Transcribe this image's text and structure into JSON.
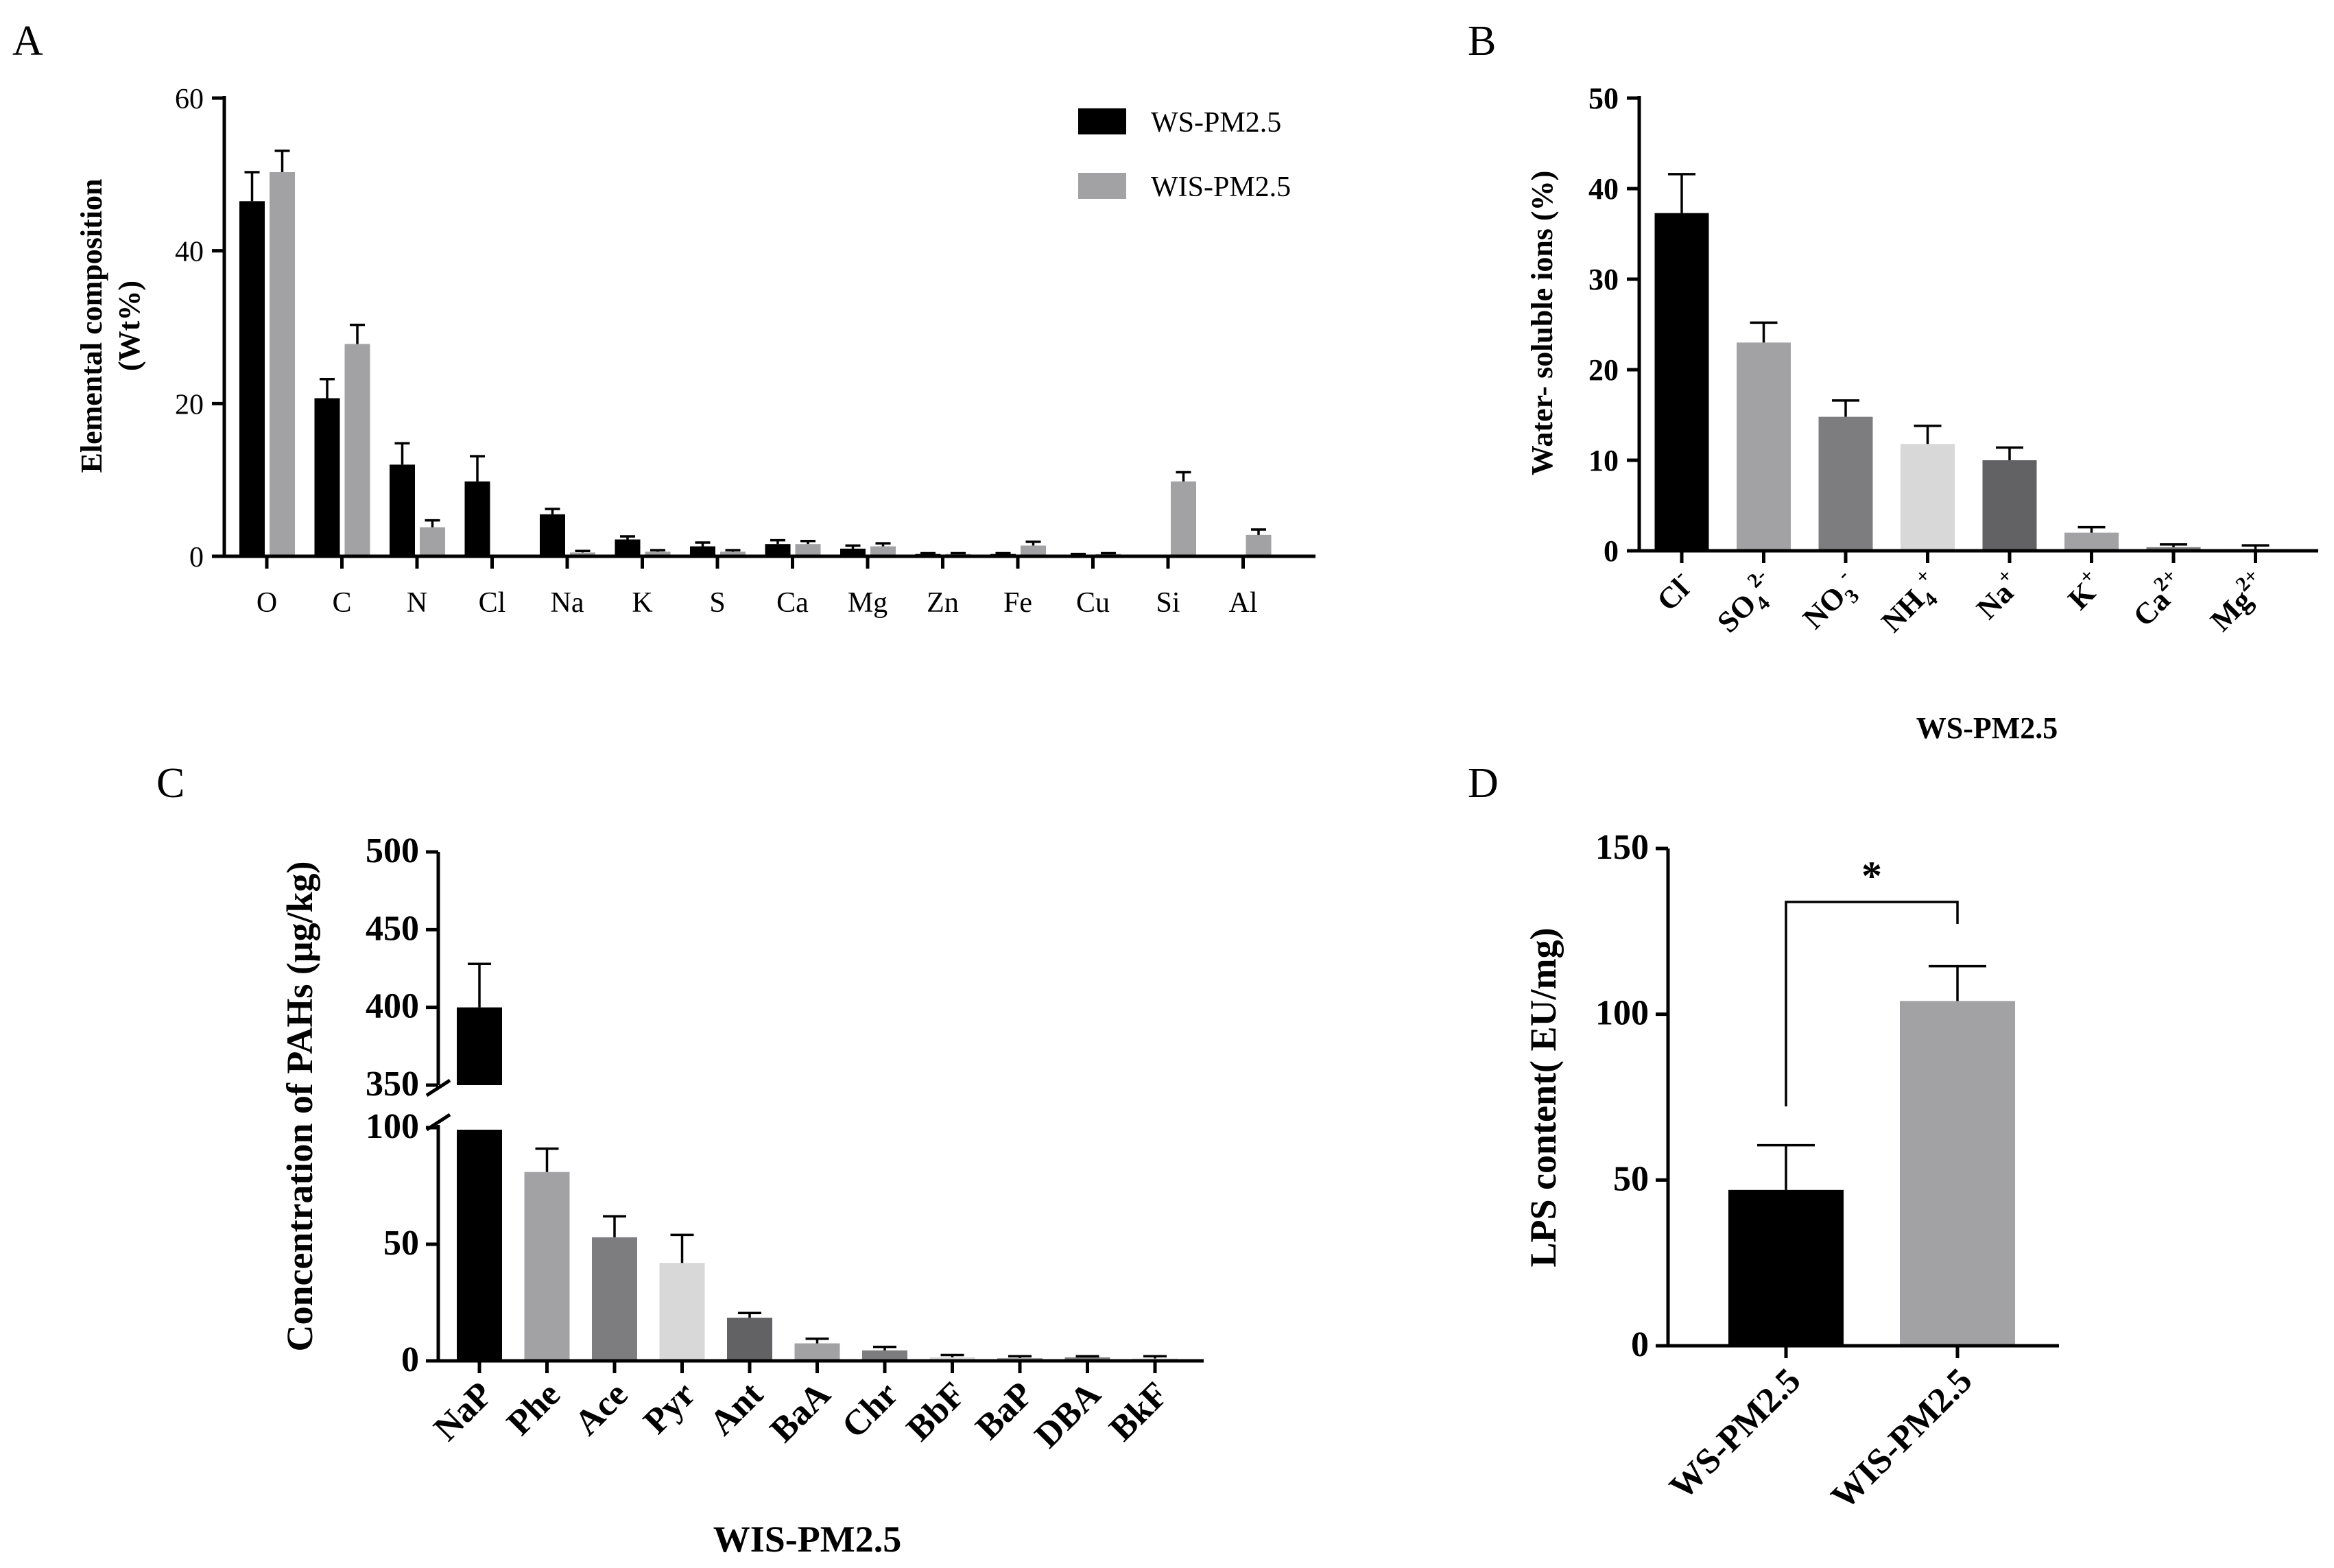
{
  "panels": {
    "a": {
      "letter": "A"
    },
    "b": {
      "letter": "B"
    },
    "c": {
      "letter": "C"
    },
    "d": {
      "letter": "D"
    }
  },
  "chart_data": [
    {
      "panel": "A",
      "type": "bar",
      "ylabel_line1": "Elemental composition",
      "ylabel_line2": "(Wt%)",
      "xlabel": "",
      "ylim": [
        0,
        60
      ],
      "yticks": [
        0,
        20,
        40,
        60
      ],
      "categories": [
        "O",
        "C",
        "N",
        "Cl",
        "Na",
        "K",
        "S",
        "Ca",
        "Mg",
        "Zn",
        "Fe",
        "Cu",
        "Si",
        "Al"
      ],
      "legend_position": "top-right",
      "series": [
        {
          "name": "WS-PM2.5",
          "color": "#000000",
          "values": [
            46.5,
            20.7,
            12.0,
            9.8,
            5.5,
            2.2,
            1.3,
            1.6,
            1.0,
            0.3,
            0.3,
            0.2,
            0,
            0
          ],
          "errors": [
            3.8,
            2.5,
            2.8,
            3.3,
            0.7,
            0.4,
            0.5,
            0.5,
            0.4,
            0.1,
            0.1,
            0.1,
            0,
            0
          ]
        },
        {
          "name": "WIS-PM2.5",
          "color": "#a2a2a5",
          "values": [
            50.3,
            27.8,
            3.8,
            0,
            0.5,
            0.6,
            0.6,
            1.6,
            1.3,
            0.3,
            1.4,
            0.3,
            9.8,
            2.8
          ],
          "errors": [
            2.8,
            2.5,
            0.9,
            0,
            0.2,
            0.2,
            0.2,
            0.4,
            0.4,
            0.1,
            0.5,
            0.1,
            1.2,
            0.7
          ]
        }
      ]
    },
    {
      "panel": "B",
      "type": "bar",
      "ylabel": "Water- soluble ions (%)",
      "xlabel": "WS-PM2.5",
      "ylim": [
        0,
        50
      ],
      "yticks": [
        0,
        10,
        20,
        30,
        40,
        50
      ],
      "categories": [
        {
          "base": "Cl",
          "sub": "",
          "sup": "-"
        },
        {
          "base": "SO",
          "sub": "4",
          "sup": "2-"
        },
        {
          "base": "NO",
          "sub": "3",
          "sup": "-"
        },
        {
          "base": "NH",
          "sub": "4",
          "sup": "+"
        },
        {
          "base": "Na",
          "sub": "",
          "sup": "+"
        },
        {
          "base": "K",
          "sub": "",
          "sup": "+"
        },
        {
          "base": "Ca",
          "sub": "",
          "sup": "2+"
        },
        {
          "base": "Mg",
          "sub": "",
          "sup": "2+"
        }
      ],
      "values": [
        37.3,
        23.0,
        14.8,
        11.8,
        10.0,
        2.0,
        0.4,
        0.2
      ],
      "errors": [
        4.3,
        2.2,
        1.8,
        2.0,
        1.4,
        0.6,
        0.3,
        0.4
      ],
      "colors": [
        "#000000",
        "#a2a2a5",
        "#7d7d80",
        "#d8d8d8",
        "#626265",
        "#a2a2a5",
        "#7d7d80",
        "#d8d8d8"
      ]
    },
    {
      "panel": "C",
      "type": "bar",
      "ylabel": "Concentration of PAHs (μg/kg)",
      "xlabel": "WIS-PM2.5",
      "broken_axis": {
        "lower": [
          0,
          100
        ],
        "upper": [
          350,
          500
        ]
      },
      "yticks_lower": [
        0,
        50,
        100
      ],
      "yticks_upper": [
        350,
        400,
        450,
        500
      ],
      "categories": [
        "NaP",
        "Phe",
        "Ace",
        "Pyr",
        "Ant",
        "BaA",
        "Chr",
        "BbF",
        "BaP",
        "DBA",
        "BkF"
      ],
      "values": [
        400,
        81,
        53,
        42,
        18.5,
        7.5,
        4.5,
        1.5,
        1.2,
        1.5,
        1.0
      ],
      "errors": [
        28,
        10,
        9,
        12,
        2,
        2,
        1.5,
        1,
        0.8,
        0.5,
        1.0
      ],
      "colors": [
        "#000000",
        "#a2a2a5",
        "#7d7d80",
        "#d8d8d8",
        "#626265",
        "#a2a2a5",
        "#7d7d80",
        "#d8d8d8",
        "#a2a2a5",
        "#7d7d80",
        "#d8d8d8"
      ]
    },
    {
      "panel": "D",
      "type": "bar",
      "ylabel": "LPS content( EU/mg)",
      "xlabel": "",
      "ylim": [
        0,
        150
      ],
      "yticks": [
        0,
        50,
        100,
        150
      ],
      "categories": [
        "WS-PM2.5",
        "WIS-PM2.5"
      ],
      "values": [
        47,
        104
      ],
      "errors": [
        13.5,
        10.5
      ],
      "colors": [
        "#000000",
        "#a2a2a5"
      ],
      "significance": "*"
    }
  ]
}
